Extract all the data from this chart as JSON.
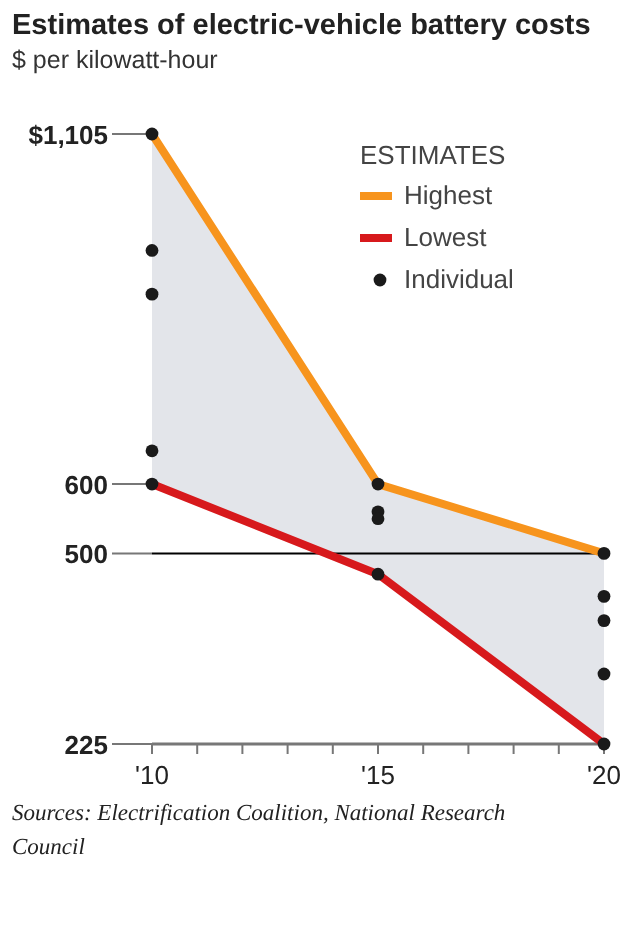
{
  "chart_data": {
    "type": "line",
    "title": "Estimates of electric-vehicle battery costs",
    "subtitle": "$ per kilowatt-hour",
    "legend_title": "ESTIMATES",
    "x": [
      2010,
      2015,
      2020
    ],
    "series": [
      {
        "name": "Highest",
        "color": "#f7941d",
        "values": [
          1105,
          600,
          500
        ],
        "marker": "none",
        "lower": [
          600,
          470,
          225
        ],
        "upper": [
          1105,
          600,
          500
        ]
      },
      {
        "name": "Lowest",
        "color": "#d7191c",
        "values": [
          600,
          470,
          225
        ],
        "marker": "none"
      },
      {
        "name": "Individual",
        "type": "scatter",
        "color": "#1a1a1a",
        "marker": "circle",
        "x": [
          2010,
          2010,
          2010,
          2010,
          2010,
          2015,
          2015,
          2015,
          2015,
          2020,
          2020,
          2020,
          2020,
          2020
        ],
        "values": [
          1105,
          937,
          874,
          648,
          600,
          600,
          560,
          550,
          470,
          500,
          438,
          403,
          326,
          225
        ]
      }
    ],
    "xlim": [
      2010,
      2020
    ],
    "xticks": [
      {
        "value": 2010,
        "label": "'10"
      },
      {
        "value": 2011,
        "label": null
      },
      {
        "value": 2012,
        "label": null
      },
      {
        "value": 2013,
        "label": null
      },
      {
        "value": 2014,
        "label": null
      },
      {
        "value": 2015,
        "label": "'15"
      },
      {
        "value": 2016,
        "label": null
      },
      {
        "value": 2017,
        "label": null
      },
      {
        "value": 2018,
        "label": null
      },
      {
        "value": 2019,
        "label": null
      },
      {
        "value": 2020,
        "label": "'20"
      }
    ],
    "ylim": [
      225,
      1105
    ],
    "yticks": [
      225,
      500,
      600,
      {
        "value": 1105,
        "label": "$1,105"
      }
    ],
    "ref_lines": [
      {
        "axis": "y",
        "value": 500,
        "color": "#000000"
      }
    ],
    "grid": false,
    "legend": "top right",
    "line_style": "solid",
    "annotations": [
      "Sources: Electrification Coalition, National Research Council"
    ]
  }
}
